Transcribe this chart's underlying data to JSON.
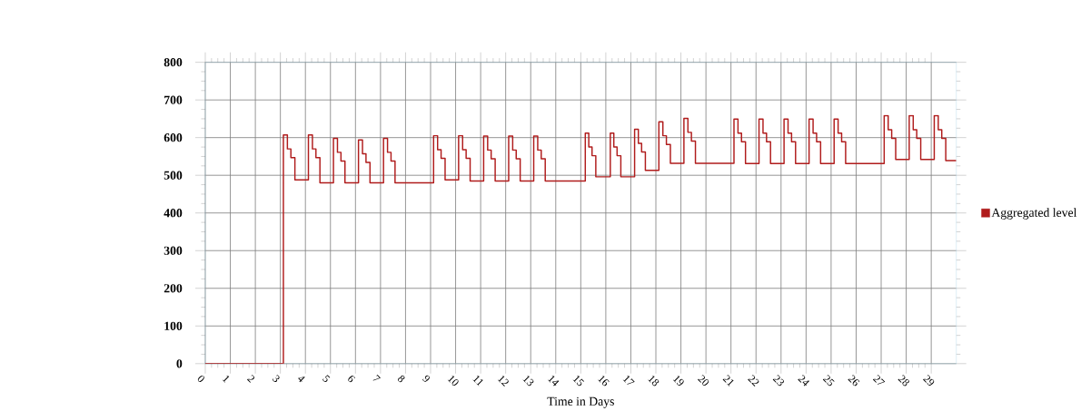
{
  "chart_data": {
    "type": "step",
    "xlabel": "Time in Days",
    "xlim": [
      0,
      30
    ],
    "xticks": [
      0,
      1,
      2,
      3,
      4,
      5,
      6,
      7,
      8,
      9,
      10,
      11,
      12,
      13,
      14,
      15,
      16,
      17,
      18,
      19,
      20,
      21,
      22,
      23,
      24,
      25,
      26,
      27,
      28,
      29
    ],
    "ylim": [
      0,
      800
    ],
    "yticks": [
      0,
      100,
      200,
      300,
      400,
      500,
      600,
      700,
      800
    ],
    "grid": true,
    "legend": "right",
    "series": [
      {
        "name": "Aggregated level",
        "color": "#b01c1c",
        "x": [
          0,
          3.12,
          3.28,
          3.42,
          3.58,
          4.12,
          4.28,
          4.42,
          4.58,
          5.12,
          5.28,
          5.42,
          5.58,
          6.12,
          6.28,
          6.42,
          6.58,
          7.12,
          7.28,
          7.42,
          7.58,
          9.12,
          9.28,
          9.42,
          9.58,
          10.12,
          10.28,
          10.42,
          10.58,
          11.12,
          11.28,
          11.42,
          11.58,
          12.12,
          12.28,
          12.42,
          12.58,
          13.12,
          13.28,
          13.42,
          13.58,
          15.18,
          15.32,
          15.45,
          15.6,
          16.18,
          16.32,
          16.45,
          16.6,
          17.15,
          17.3,
          17.43,
          17.58,
          18.12,
          18.28,
          18.42,
          18.58,
          19.12,
          19.28,
          19.42,
          19.58,
          21.12,
          21.28,
          21.42,
          21.58,
          22.12,
          22.28,
          22.42,
          22.58,
          23.12,
          23.28,
          23.42,
          23.58,
          24.12,
          24.28,
          24.42,
          24.58,
          25.12,
          25.28,
          25.42,
          25.58,
          27.12,
          27.28,
          27.42,
          27.58,
          28.12,
          28.28,
          28.42,
          28.58,
          29.12,
          29.28,
          29.42,
          29.58,
          30
        ],
        "values": [
          0,
          607,
          570,
          547,
          488,
          607,
          570,
          547,
          480,
          598,
          561,
          538,
          480,
          594,
          557,
          534,
          480,
          598,
          561,
          538,
          480,
          605,
          568,
          545,
          488,
          605,
          568,
          545,
          485,
          604,
          567,
          544,
          485,
          604,
          567,
          544,
          485,
          604,
          567,
          544,
          485,
          612,
          575,
          552,
          496,
          612,
          575,
          552,
          496,
          622,
          585,
          562,
          513,
          642,
          605,
          582,
          532,
          651,
          614,
          591,
          532,
          649,
          612,
          589,
          531,
          649,
          612,
          589,
          531,
          649,
          612,
          589,
          531,
          649,
          612,
          589,
          531,
          649,
          612,
          589,
          531,
          658,
          621,
          598,
          542,
          658,
          621,
          598,
          542,
          658,
          621,
          598,
          539,
          539
        ]
      }
    ]
  }
}
